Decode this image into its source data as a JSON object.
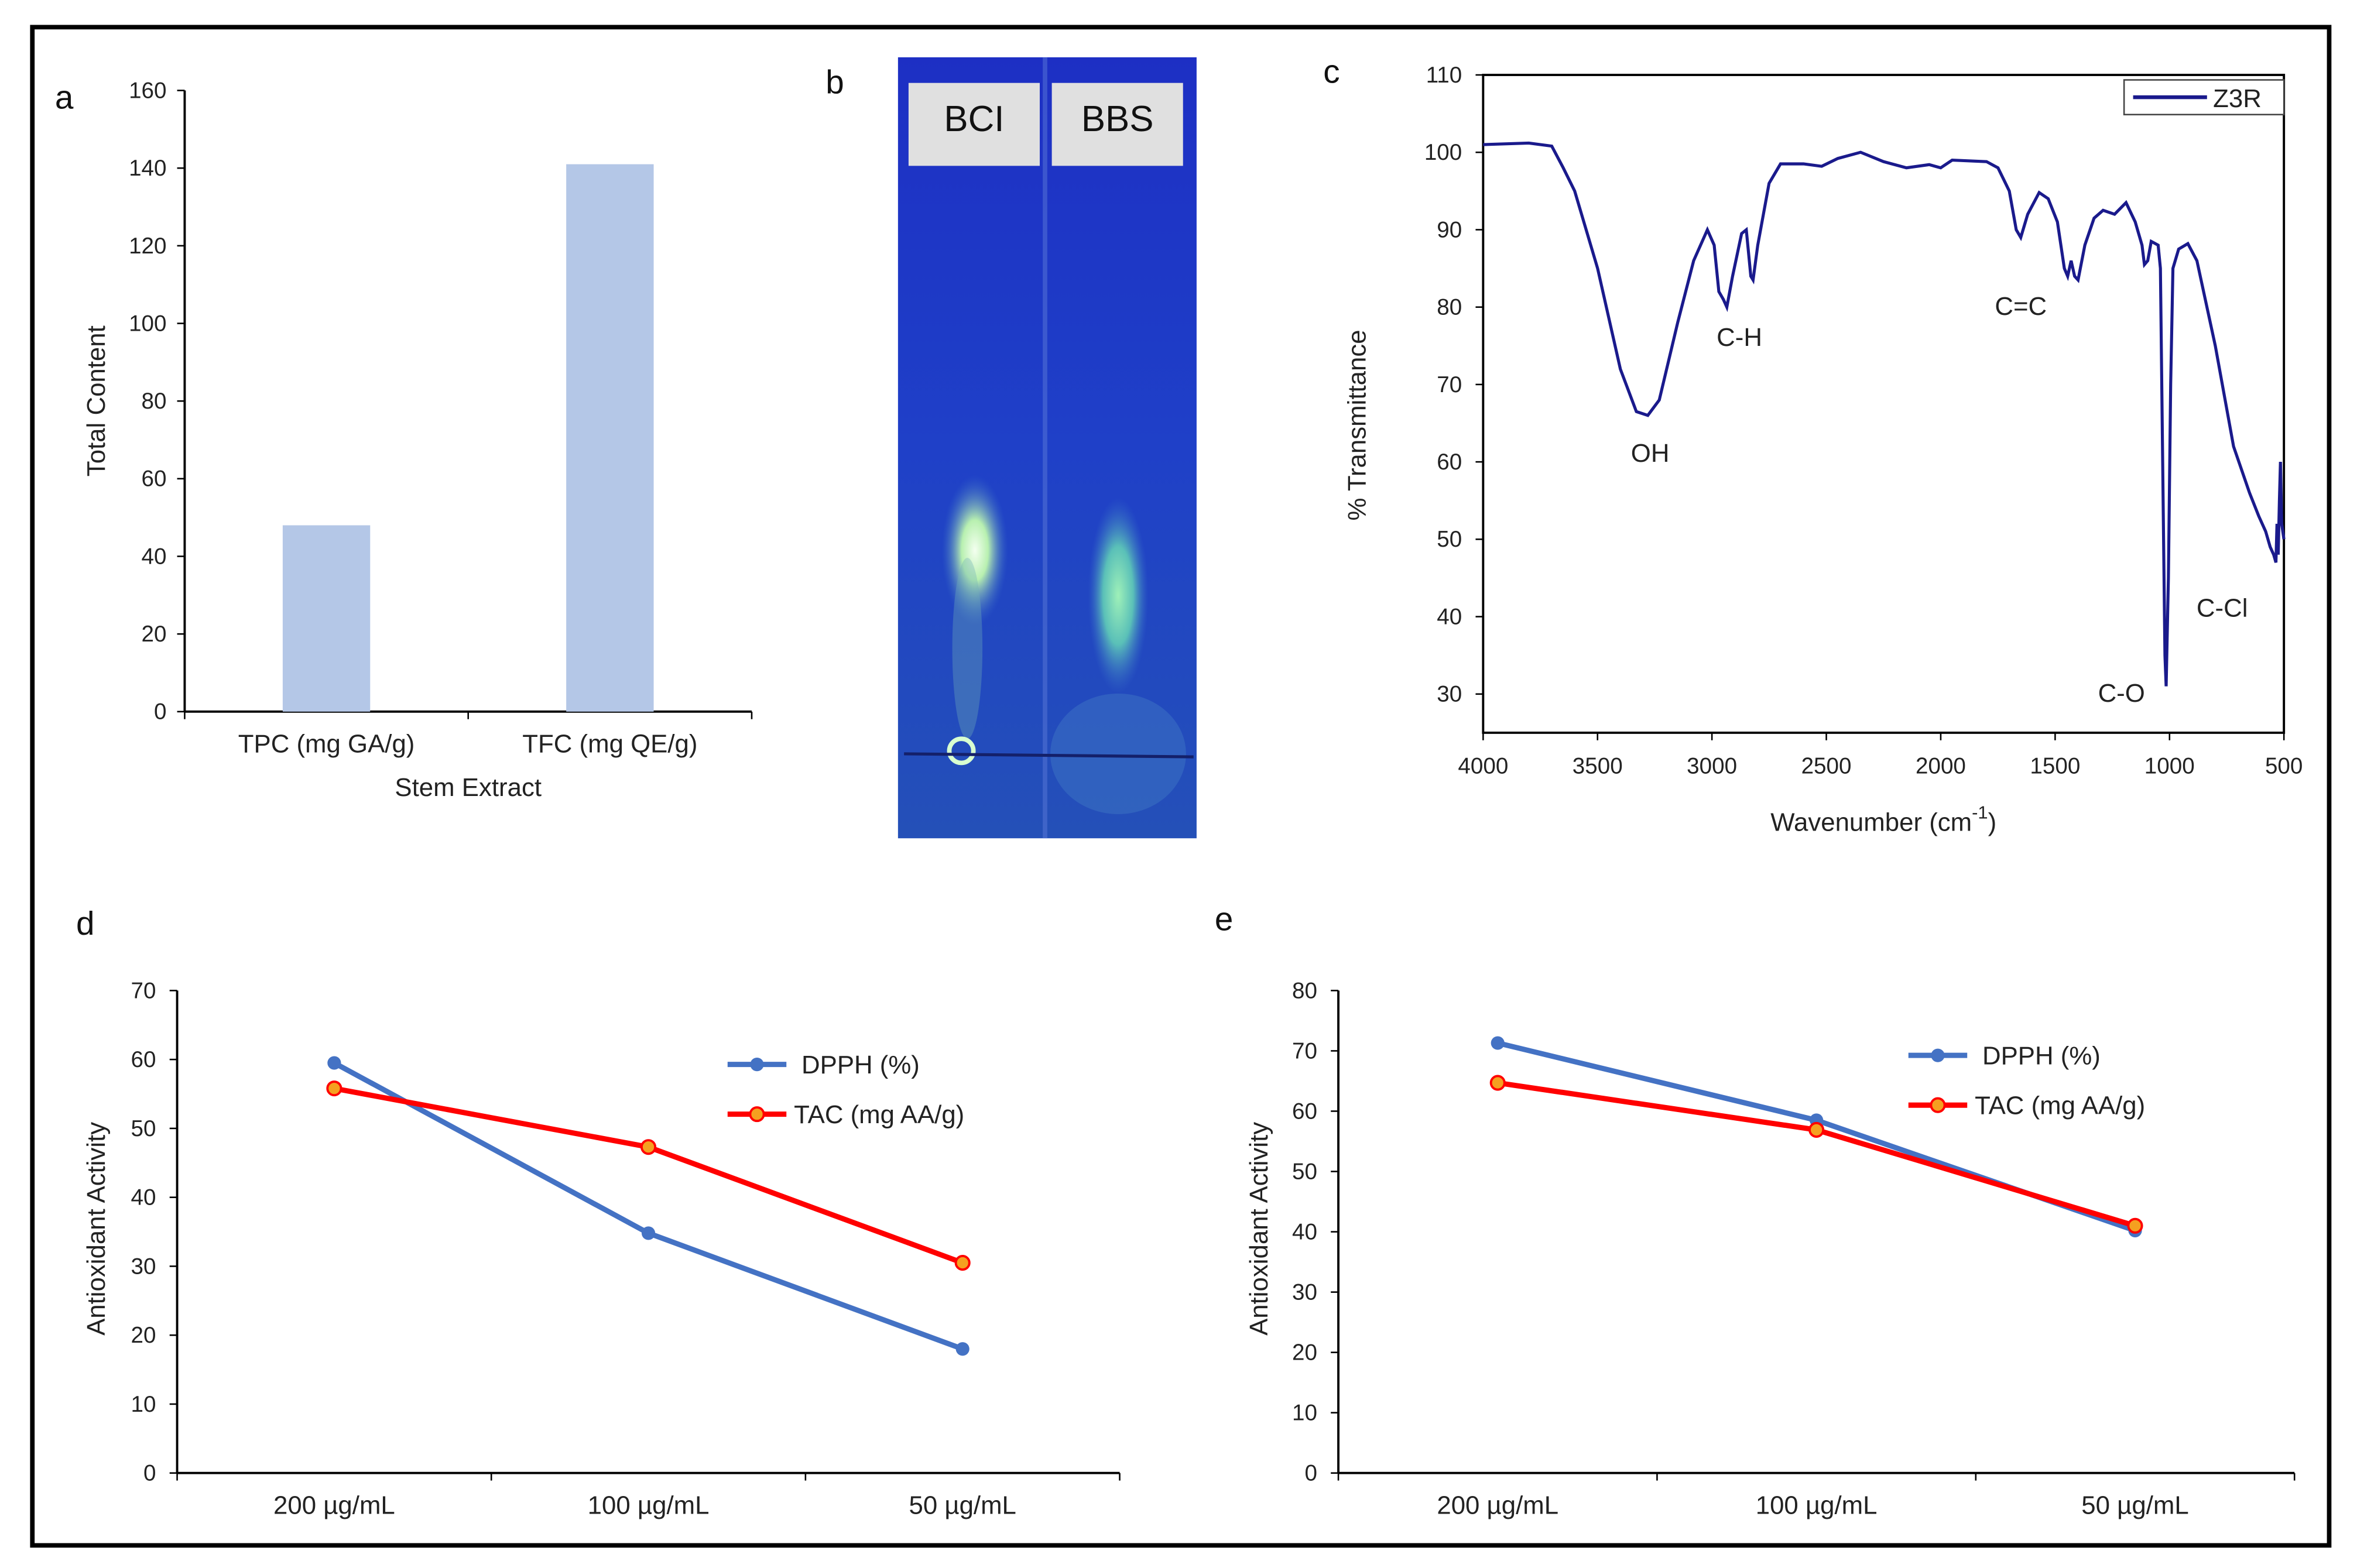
{
  "chart_data": [
    {
      "panel": "a",
      "type": "bar",
      "categories": [
        "TPC (mg GA/g)",
        "TFC (mg QE/g)"
      ],
      "values": [
        48,
        141
      ],
      "xlabel": "Stem Extract",
      "ylabel": "Total Content",
      "ylim": [
        0,
        160
      ],
      "yticks": [
        0,
        20,
        40,
        60,
        80,
        100,
        120,
        140,
        160
      ],
      "color": "#b4c7e7"
    },
    {
      "panel": "b",
      "type": "image",
      "lane_labels": [
        "BCI",
        "BBS"
      ]
    },
    {
      "panel": "c",
      "type": "line",
      "xlabel": "Wavenumber (cm",
      "xlabel_sup": "-1",
      "xlabel_end": ")",
      "ylabel": "% Transmittance",
      "xlim": [
        4000,
        500
      ],
      "ylim": [
        25,
        110
      ],
      "xticks": [
        4000,
        3500,
        3000,
        2500,
        2000,
        1500,
        1000,
        500
      ],
      "yticks": [
        30,
        40,
        50,
        60,
        70,
        80,
        90,
        100,
        110
      ],
      "legend": "Z3R",
      "legend_position": "top-right",
      "color": "#1a1a8c",
      "annotations": [
        {
          "text": "OH",
          "x": 3270,
          "y": 60
        },
        {
          "text": "C-H",
          "x": 2880,
          "y": 75
        },
        {
          "text": "C=C",
          "x": 1650,
          "y": 79
        },
        {
          "text": "C-O",
          "x": 1210,
          "y": 29
        },
        {
          "text": "C-Cl",
          "x": 770,
          "y": 40
        }
      ],
      "series": [
        {
          "name": "Z3R",
          "points": [
            [
              4000,
              101
            ],
            [
              3800,
              101.2
            ],
            [
              3700,
              100.8
            ],
            [
              3650,
              98
            ],
            [
              3600,
              95
            ],
            [
              3500,
              85
            ],
            [
              3400,
              72
            ],
            [
              3330,
              66.5
            ],
            [
              3280,
              66
            ],
            [
              3230,
              68
            ],
            [
              3150,
              78
            ],
            [
              3080,
              86
            ],
            [
              3020,
              90
            ],
            [
              2990,
              88
            ],
            [
              2970,
              82
            ],
            [
              2950,
              81
            ],
            [
              2935,
              80
            ],
            [
              2910,
              84
            ],
            [
              2870,
              89.5
            ],
            [
              2850,
              90
            ],
            [
              2830,
              84
            ],
            [
              2820,
              83.5
            ],
            [
              2800,
              88
            ],
            [
              2750,
              96
            ],
            [
              2700,
              98.5
            ],
            [
              2600,
              98.5
            ],
            [
              2520,
              98.2
            ],
            [
              2450,
              99.2
            ],
            [
              2350,
              100
            ],
            [
              2250,
              98.8
            ],
            [
              2150,
              98
            ],
            [
              2050,
              98.4
            ],
            [
              2000,
              98
            ],
            [
              1950,
              99
            ],
            [
              1800,
              98.8
            ],
            [
              1750,
              98
            ],
            [
              1700,
              95
            ],
            [
              1670,
              90
            ],
            [
              1650,
              89
            ],
            [
              1620,
              92
            ],
            [
              1570,
              94.8
            ],
            [
              1530,
              94
            ],
            [
              1490,
              91
            ],
            [
              1460,
              85
            ],
            [
              1445,
              84
            ],
            [
              1430,
              86
            ],
            [
              1415,
              84
            ],
            [
              1400,
              83.5
            ],
            [
              1370,
              88
            ],
            [
              1330,
              91.5
            ],
            [
              1290,
              92.5
            ],
            [
              1240,
              92
            ],
            [
              1190,
              93.5
            ],
            [
              1150,
              91
            ],
            [
              1120,
              88
            ],
            [
              1110,
              85.5
            ],
            [
              1095,
              86
            ],
            [
              1080,
              88.5
            ],
            [
              1050,
              88
            ],
            [
              1040,
              85
            ],
            [
              1030,
              60
            ],
            [
              1020,
              35
            ],
            [
              1015,
              31
            ],
            [
              1005,
              45
            ],
            [
              995,
              70
            ],
            [
              985,
              85
            ],
            [
              960,
              87.5
            ],
            [
              920,
              88.2
            ],
            [
              880,
              86
            ],
            [
              800,
              75
            ],
            [
              720,
              62
            ],
            [
              650,
              56
            ],
            [
              610,
              53
            ],
            [
              580,
              51
            ],
            [
              560,
              49
            ],
            [
              545,
              48
            ],
            [
              535,
              47
            ],
            [
              530,
              52
            ],
            [
              525,
              48
            ],
            [
              520,
              55
            ],
            [
              515,
              60
            ],
            [
              510,
              52
            ],
            [
              500,
              50
            ]
          ]
        }
      ]
    },
    {
      "panel": "d",
      "type": "line",
      "categories": [
        "200 µg/mL",
        "100 µg/mL",
        "50 µg/mL"
      ],
      "ylabel": "Antioxidant Activity",
      "ylim": [
        0,
        70
      ],
      "yticks": [
        0,
        10,
        20,
        30,
        40,
        50,
        60,
        70
      ],
      "legend_position": "top-right",
      "series": [
        {
          "name": "DPPH (%)",
          "values": [
            59.5,
            34.8,
            18
          ],
          "color": "#4472c4"
        },
        {
          "name": "TAC (mg AA/g)",
          "values": [
            55.8,
            47.3,
            30.5
          ],
          "color": "#ff0000"
        }
      ]
    },
    {
      "panel": "e",
      "type": "line",
      "categories": [
        "200 µg/mL",
        "100 µg/mL",
        "50 µg/mL"
      ],
      "ylabel": "Antioxidant Activity",
      "ylim": [
        0,
        80
      ],
      "yticks": [
        0,
        10,
        20,
        30,
        40,
        50,
        60,
        70,
        80
      ],
      "legend_position": "top-right",
      "series": [
        {
          "name": "DPPH (%)",
          "values": [
            71.3,
            58.5,
            40.2
          ],
          "color": "#4472c4"
        },
        {
          "name": "TAC (mg AA/g)",
          "values": [
            64.7,
            56.9,
            41
          ],
          "color": "#ff0000"
        }
      ]
    }
  ],
  "panel_letters": [
    "a",
    "b",
    "c",
    "d",
    "e"
  ]
}
